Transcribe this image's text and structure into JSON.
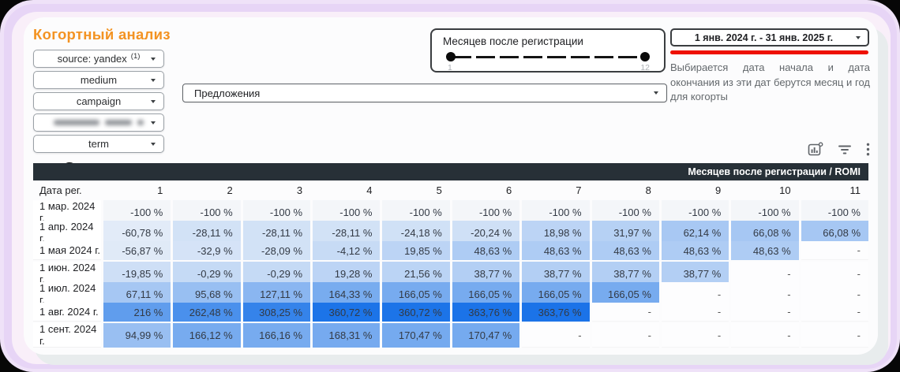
{
  "page": {
    "title": "Когортный анализ"
  },
  "colors": {
    "accent_orange": "#f39322",
    "red_underline": "#ee1100",
    "table_header_bg": "#273037",
    "heat_low": "#f4f6f9",
    "heat_high": "#1a73e8",
    "bg_lavender": "#e7d5f6",
    "bg_pink": "#f9eff9"
  },
  "filters": [
    {
      "prefix": "source:",
      "value": "yandex",
      "count": "(1)"
    },
    {
      "label": "medium"
    },
    {
      "label": "campaign"
    },
    {
      "redacted": true
    },
    {
      "label": "term"
    }
  ],
  "slider": {
    "title": "Месяцев после регистрации",
    "min_label": "1",
    "max_label": "12"
  },
  "date_range": {
    "value": "1 янв. 2024 г. - 31 янв. 2025 г.",
    "note": "Выбирается дата начала и дата окончания из эти дат берутся месяц и год для когорты"
  },
  "dimension_select": {
    "value": "Предложения"
  },
  "toolbar": {
    "icons": [
      "chart-options",
      "filter-list",
      "more-vert"
    ]
  },
  "chart_data": {
    "type": "heatmap",
    "title": "Месяцев после регистрации / ROMI",
    "row_header": "Дата рег.",
    "columns": [
      "1",
      "2",
      "3",
      "4",
      "5",
      "6",
      "7",
      "8",
      "9",
      "10",
      "11"
    ],
    "rows": [
      "1 мар. 2024 г.",
      "1 апр. 2024 г.",
      "1 мая 2024 г.",
      "1 июн. 2024 г.",
      "1 июл. 2024 г.",
      "1 авг. 2024 г.",
      "1 сент. 2024 г."
    ],
    "cells": [
      [
        "-100 %",
        "-100 %",
        "-100 %",
        "-100 %",
        "-100 %",
        "-100 %",
        "-100 %",
        "-100 %",
        "-100 %",
        "-100 %",
        "-100 %"
      ],
      [
        "-60,78 %",
        "-28,11 %",
        "-28,11 %",
        "-28,11 %",
        "-24,18 %",
        "-20,24 %",
        "18,98 %",
        "31,97 %",
        "62,14 %",
        "66,08 %",
        "66,08 %"
      ],
      [
        "-56,87 %",
        "-32,9 %",
        "-28,09 %",
        "-4,12 %",
        "19,85 %",
        "48,63 %",
        "48,63 %",
        "48,63 %",
        "48,63 %",
        "48,63 %",
        "-"
      ],
      [
        "-19,85 %",
        "-0,29 %",
        "-0,29 %",
        "19,28 %",
        "21,56 %",
        "38,77 %",
        "38,77 %",
        "38,77 %",
        "38,77 %",
        "-",
        "-"
      ],
      [
        "67,11 %",
        "95,68 %",
        "127,11 %",
        "164,33 %",
        "166,05 %",
        "166,05 %",
        "166,05 %",
        "166,05 %",
        "-",
        "-",
        "-"
      ],
      [
        "216 %",
        "262,48 %",
        "308,25 %",
        "360,72 %",
        "360,72 %",
        "363,76 %",
        "363,76 %",
        "-",
        "-",
        "-",
        "-"
      ],
      [
        "94,99 %",
        "166,12 %",
        "166,16 %",
        "168,31 %",
        "170,47 %",
        "170,47 %",
        "-",
        "-",
        "-",
        "-",
        "-"
      ]
    ],
    "color_scale": {
      "min": -100,
      "max": 365,
      "start": "#f4f6f9",
      "end": "#1a73e8"
    }
  }
}
